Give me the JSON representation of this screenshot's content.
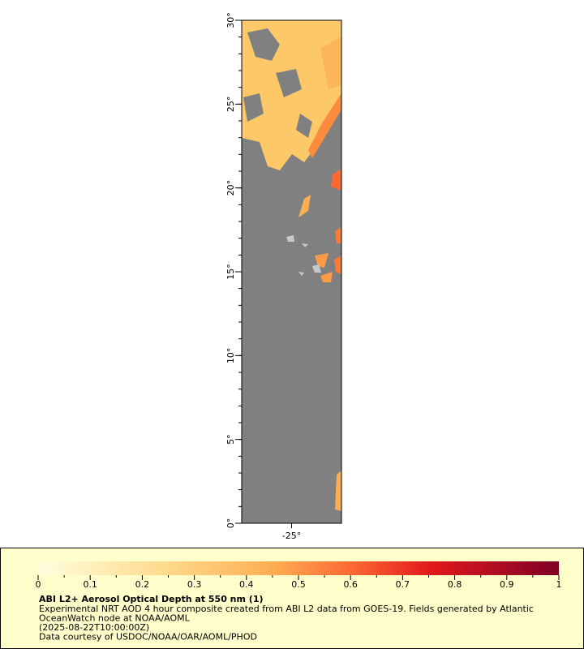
{
  "map": {
    "xlim": [
      -28,
      -22
    ],
    "xticks": [
      {
        "value": -25,
        "label": "-25°"
      }
    ],
    "ylim": [
      0,
      30
    ],
    "yticks": [
      {
        "value": 0,
        "label": "0°"
      },
      {
        "value": 5,
        "label": "5°"
      },
      {
        "value": 10,
        "label": "10°"
      },
      {
        "value": 15,
        "label": "15°"
      },
      {
        "value": 20,
        "label": "20°"
      },
      {
        "value": 25,
        "label": "25°"
      },
      {
        "value": 30,
        "label": "30°"
      }
    ]
  },
  "colorbar": {
    "range": [
      0,
      1
    ],
    "ticks": [
      0,
      0.1,
      0.2,
      0.3,
      0.4,
      0.5,
      0.6,
      0.7,
      0.8,
      0.9,
      1
    ]
  },
  "legend": {
    "title": "ABI L2+ Aerosol Optical Depth at 550 nm (1)",
    "lines": [
      "Experimental NRT AOD 4 hour composite created from ABI L2 data from GOES-19. Fields generated by Atlantic",
      "OceanWatch node at NOAA/AOML",
      "(2025-08-22T10:00:00Z)",
      "Data courtesy of USDOC/NOAA/OAR/AOML/PHOD"
    ]
  }
}
